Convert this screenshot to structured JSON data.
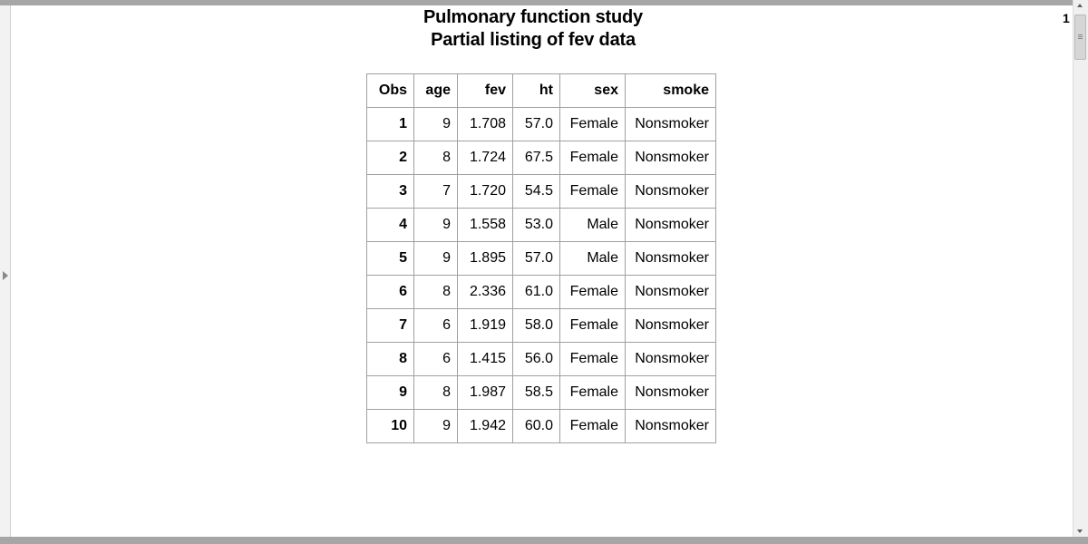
{
  "page_number": "1",
  "title": {
    "line1": "Pulmonary function study",
    "line2": "Partial listing of fev data"
  },
  "table": {
    "columns": [
      "Obs",
      "age",
      "fev",
      "ht",
      "sex",
      "smoke"
    ],
    "rows": [
      [
        "1",
        "9",
        "1.708",
        "57.0",
        "Female",
        "Nonsmoker"
      ],
      [
        "2",
        "8",
        "1.724",
        "67.5",
        "Female",
        "Nonsmoker"
      ],
      [
        "3",
        "7",
        "1.720",
        "54.5",
        "Female",
        "Nonsmoker"
      ],
      [
        "4",
        "9",
        "1.558",
        "53.0",
        "Male",
        "Nonsmoker"
      ],
      [
        "5",
        "9",
        "1.895",
        "57.0",
        "Male",
        "Nonsmoker"
      ],
      [
        "6",
        "8",
        "2.336",
        "61.0",
        "Female",
        "Nonsmoker"
      ],
      [
        "7",
        "6",
        "1.919",
        "58.0",
        "Female",
        "Nonsmoker"
      ],
      [
        "8",
        "6",
        "1.415",
        "56.0",
        "Female",
        "Nonsmoker"
      ],
      [
        "9",
        "8",
        "1.987",
        "58.5",
        "Female",
        "Nonsmoker"
      ],
      [
        "10",
        "9",
        "1.942",
        "60.0",
        "Female",
        "Nonsmoker"
      ]
    ]
  },
  "icons": {
    "gutter": "expand-arrow-icon",
    "scroll_up": "scroll-up-arrow-icon",
    "scroll_down": "scroll-down-arrow-icon"
  },
  "colors": {
    "border": "#a6a6a6",
    "grid": "#a0a0a0",
    "text": "#000000"
  }
}
